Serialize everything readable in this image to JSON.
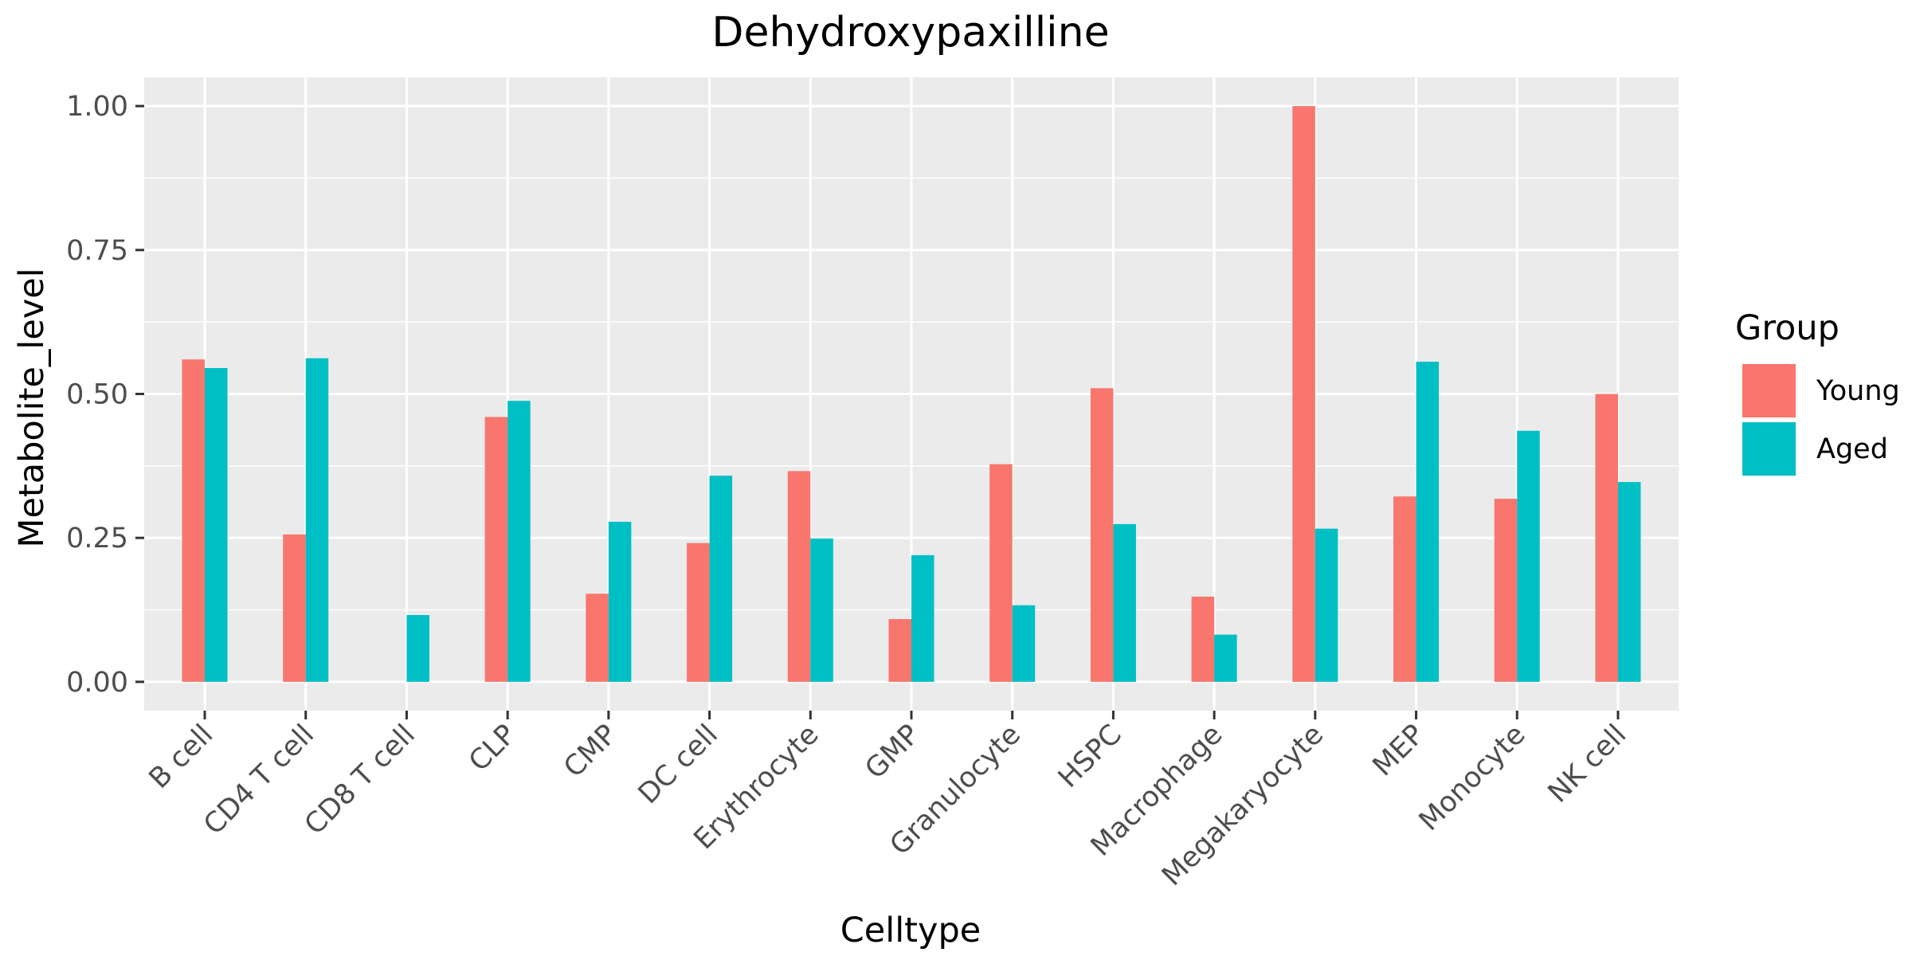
{
  "chart_data": {
    "type": "bar",
    "title": "Dehydroxypaxilline",
    "xlabel": "Celltype",
    "ylabel": "Metabolite_level",
    "categories": [
      "B cell",
      "CD4 T cell",
      "CD8 T cell",
      "CLP",
      "CMP",
      "DC cell",
      "Erythrocyte",
      "GMP",
      "Granulocyte",
      "HSPC",
      "Macrophage",
      "Megakaryocyte",
      "MEP",
      "Monocyte",
      "NK cell"
    ],
    "series": [
      {
        "name": "Young",
        "color": "#F8766D",
        "values": [
          0.56,
          0.256,
          null,
          0.46,
          0.153,
          0.241,
          0.366,
          0.109,
          0.378,
          0.51,
          0.148,
          1.0,
          0.322,
          0.318,
          0.5
        ]
      },
      {
        "name": "Aged",
        "color": "#00BFC4",
        "values": [
          0.545,
          0.562,
          0.116,
          0.488,
          0.278,
          0.358,
          0.249,
          0.22,
          0.133,
          0.274,
          0.082,
          0.266,
          0.556,
          0.436,
          0.347
        ]
      }
    ],
    "yticks": [
      0,
      0.25,
      0.5,
      0.75,
      1.0
    ],
    "ytick_labels": [
      "0.00",
      "0.25",
      "0.50",
      "0.75",
      "1.00"
    ],
    "ylim": [
      -0.05,
      1.05
    ],
    "grid": true,
    "legend": {
      "title": "Group",
      "placement": "right"
    },
    "panel_color": "#EBEBEB",
    "grid_color": "#FFFFFF"
  }
}
